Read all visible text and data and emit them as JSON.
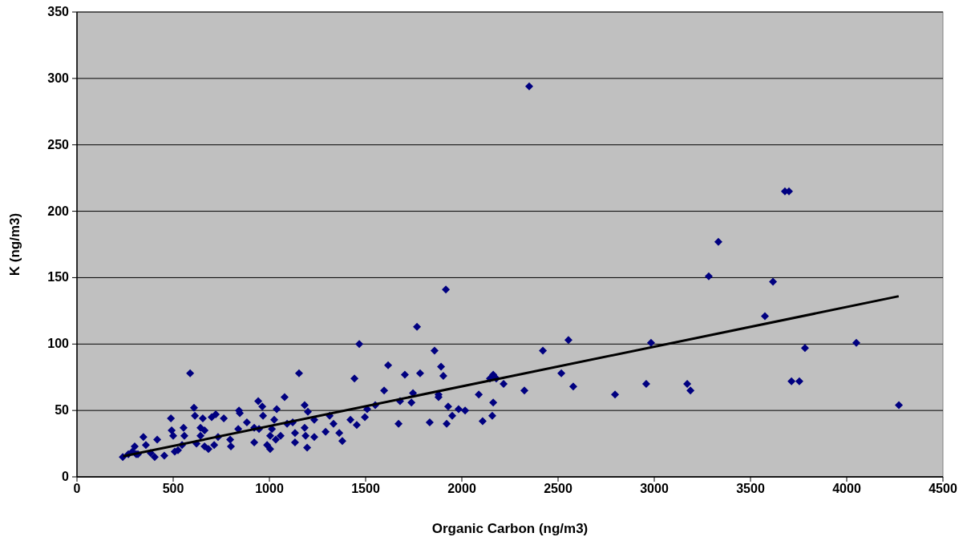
{
  "chart_data": {
    "type": "scatter",
    "xlabel": "Organic Carbon (ng/m3)",
    "ylabel": "K (ng/m3)",
    "xlim": [
      0,
      4500
    ],
    "xticks": [
      0,
      500,
      1000,
      1500,
      2000,
      2500,
      3000,
      3500,
      4000,
      4500
    ],
    "ylim": [
      0,
      350
    ],
    "yticks": [
      0,
      50,
      100,
      150,
      200,
      250,
      300,
      350
    ],
    "grid": "y",
    "series": [
      {
        "marker": "diamond",
        "color": "#000080",
        "x": [
          238,
          267,
          288,
          308,
          345,
          417,
          358,
          300,
          317,
          383,
          404,
          454,
          488,
          492,
          500,
          508,
          525,
          546,
          554,
          558,
          588,
          608,
          613,
          642,
          654,
          663,
          621,
          642,
          663,
          683,
          713,
          700,
          721,
          733,
          763,
          796,
          800,
          842,
          846,
          838,
          883,
          921,
          921,
          942,
          963,
          967,
          946,
          988,
          1004,
          1013,
          1004,
          1038,
          1025,
          1033,
          1058,
          1079,
          1092,
          1121,
          1133,
          1133,
          1154,
          1183,
          1200,
          1183,
          1188,
          1196,
          1233,
          1233,
          1292,
          1313,
          1333,
          1363,
          1379,
          1421,
          1454,
          1442,
          1467,
          1496,
          1508,
          1917,
          1767,
          1858,
          1617,
          1892,
          1704,
          1783,
          1904,
          1596,
          1746,
          1679,
          1738,
          1879,
          1879,
          1929,
          1983,
          2017,
          1950,
          2088,
          2163,
          2146,
          2163,
          2179,
          2217,
          2325,
          2421,
          2517,
          2554,
          2579,
          2796,
          1671,
          1833,
          1921,
          2108,
          2158,
          1550,
          2350,
          3679,
          3700,
          3333,
          3283,
          3617,
          3575,
          2983,
          4050,
          3783,
          2958,
          3171,
          3188,
          3713,
          3754,
          4271
        ],
        "values": [
          15,
          17,
          19,
          17,
          30,
          28,
          24,
          23,
          17,
          18,
          15,
          16,
          44,
          35,
          31,
          19,
          20,
          24,
          37,
          31,
          78,
          52,
          46,
          37,
          44,
          35,
          25,
          31,
          23,
          21,
          24,
          45,
          47,
          30,
          44,
          28,
          23,
          50,
          48,
          36,
          41,
          26,
          37,
          57,
          53,
          46,
          36,
          24,
          21,
          36,
          31,
          51,
          43,
          28,
          31,
          60,
          40,
          41,
          33,
          26,
          78,
          54,
          49,
          37,
          31,
          22,
          43,
          30,
          34,
          46,
          40,
          33,
          27,
          43,
          39,
          74,
          100,
          45,
          51,
          141,
          113,
          95,
          84,
          83,
          77,
          78,
          76,
          65,
          63,
          57,
          56,
          62,
          60,
          53,
          51,
          50,
          46,
          62,
          56,
          74,
          77,
          74,
          70,
          65,
          95,
          78,
          103,
          68,
          62,
          40,
          41,
          40,
          42,
          46,
          54,
          294,
          215,
          215,
          177,
          151,
          147,
          121,
          101,
          101,
          97,
          70,
          70,
          65,
          72,
          72,
          54
        ]
      },
      {
        "type": "line",
        "color": "#000000",
        "x": [
          240,
          4270
        ],
        "values": [
          15.5,
          136
        ]
      }
    ]
  }
}
